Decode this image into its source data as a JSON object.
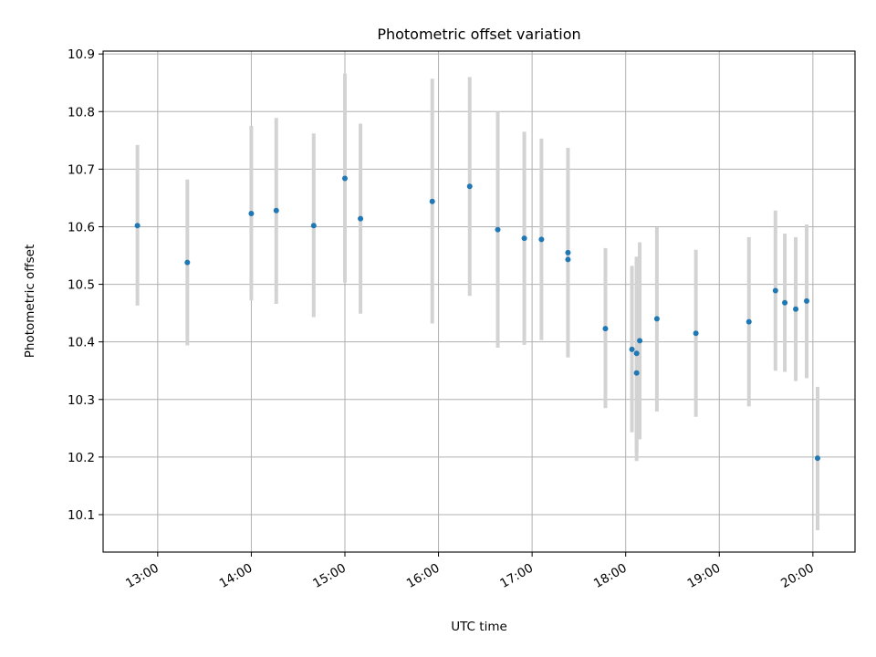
{
  "chart_data": {
    "type": "scatter",
    "title": "Photometric offset variation",
    "xlabel": "UTC time",
    "ylabel": "Photometric offset",
    "x_tick_labels": [
      "13:00",
      "14:00",
      "15:00",
      "16:00",
      "17:00",
      "18:00",
      "19:00",
      "20:00"
    ],
    "y_tick_labels": [
      "10.1",
      "10.2",
      "10.3",
      "10.4",
      "10.5",
      "10.6",
      "10.7",
      "10.8",
      "10.9"
    ],
    "xlim": [
      "12:25",
      "20:27"
    ],
    "ylim": [
      10.035,
      10.905
    ],
    "grid": true,
    "marker_color": "#1f77b4",
    "errorbar_color": "#d3d3d3",
    "points": [
      {
        "x": "12:47",
        "y": 10.602,
        "y_low": 10.463,
        "y_high": 10.742
      },
      {
        "x": "13:19",
        "y": 10.538,
        "y_low": 10.394,
        "y_high": 10.682
      },
      {
        "x": "14:00",
        "y": 10.623,
        "y_low": 10.472,
        "y_high": 10.775
      },
      {
        "x": "14:16",
        "y": 10.628,
        "y_low": 10.466,
        "y_high": 10.789
      },
      {
        "x": "14:40",
        "y": 10.602,
        "y_low": 10.443,
        "y_high": 10.762
      },
      {
        "x": "15:00",
        "y": 10.684,
        "y_low": 10.503,
        "y_high": 10.866
      },
      {
        "x": "15:10",
        "y": 10.614,
        "y_low": 10.449,
        "y_high": 10.779
      },
      {
        "x": "15:56",
        "y": 10.644,
        "y_low": 10.432,
        "y_high": 10.857
      },
      {
        "x": "16:20",
        "y": 10.67,
        "y_low": 10.48,
        "y_high": 10.86
      },
      {
        "x": "16:38",
        "y": 10.595,
        "y_low": 10.39,
        "y_high": 10.8
      },
      {
        "x": "16:55",
        "y": 10.58,
        "y_low": 10.395,
        "y_high": 10.765
      },
      {
        "x": "17:06",
        "y": 10.578,
        "y_low": 10.403,
        "y_high": 10.753
      },
      {
        "x": "17:23",
        "y": 10.555,
        "y_low": 10.373,
        "y_high": 10.737
      },
      {
        "x": "17:23",
        "y": 10.543,
        "y_low": 10.376,
        "y_high": 10.71
      },
      {
        "x": "17:47",
        "y": 10.423,
        "y_low": 10.285,
        "y_high": 10.563
      },
      {
        "x": "18:04",
        "y": 10.387,
        "y_low": 10.243,
        "y_high": 10.532
      },
      {
        "x": "18:07",
        "y": 10.346,
        "y_low": 10.193,
        "y_high": 10.547
      },
      {
        "x": "18:07",
        "y": 10.38,
        "y_low": 10.21,
        "y_high": 10.548
      },
      {
        "x": "18:09",
        "y": 10.402,
        "y_low": 10.231,
        "y_high": 10.573
      },
      {
        "x": "18:20",
        "y": 10.44,
        "y_low": 10.279,
        "y_high": 10.599
      },
      {
        "x": "18:45",
        "y": 10.415,
        "y_low": 10.27,
        "y_high": 10.56
      },
      {
        "x": "19:19",
        "y": 10.435,
        "y_low": 10.288,
        "y_high": 10.582
      },
      {
        "x": "19:36",
        "y": 10.489,
        "y_low": 10.35,
        "y_high": 10.628
      },
      {
        "x": "19:42",
        "y": 10.468,
        "y_low": 10.348,
        "y_high": 10.588
      },
      {
        "x": "19:49",
        "y": 10.457,
        "y_low": 10.332,
        "y_high": 10.582
      },
      {
        "x": "19:56",
        "y": 10.471,
        "y_low": 10.337,
        "y_high": 10.604
      },
      {
        "x": "20:03",
        "y": 10.198,
        "y_low": 10.073,
        "y_high": 10.322
      }
    ]
  }
}
